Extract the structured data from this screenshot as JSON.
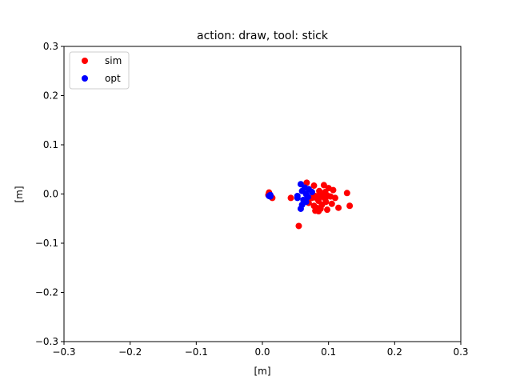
{
  "chart_data": {
    "type": "scatter",
    "title": "action: draw, tool: stick",
    "xlabel": "[m]",
    "ylabel": "[m]",
    "xlim": [
      -0.3,
      0.3
    ],
    "ylim": [
      -0.3,
      0.3
    ],
    "xticks": [
      -0.3,
      -0.2,
      -0.1,
      0.0,
      0.1,
      0.2,
      0.3
    ],
    "yticks": [
      -0.3,
      -0.2,
      -0.1,
      0.0,
      0.1,
      0.2,
      0.3
    ],
    "xtick_labels": [
      "−0.3",
      "−0.2",
      "−0.1",
      "0.0",
      "0.1",
      "0.2",
      "0.3"
    ],
    "ytick_labels": [
      "−0.3",
      "−0.2",
      "−0.1",
      "0.0",
      "0.1",
      "0.2",
      "0.3"
    ],
    "grid": false,
    "legend_position": "top-left",
    "series": [
      {
        "name": "sim",
        "color": "#ff0000",
        "points": [
          [
            0.067,
            0.023
          ],
          [
            0.078,
            0.017
          ],
          [
            0.093,
            0.018
          ],
          [
            0.1,
            0.012
          ],
          [
            0.107,
            0.008
          ],
          [
            0.128,
            0.002
          ],
          [
            0.086,
            0.006
          ],
          [
            0.095,
            0.004
          ],
          [
            0.088,
            -0.002
          ],
          [
            0.08,
            -0.004
          ],
          [
            0.092,
            -0.006
          ],
          [
            0.098,
            -0.003
          ],
          [
            0.103,
            -0.005
          ],
          [
            0.11,
            -0.008
          ],
          [
            0.075,
            -0.008
          ],
          [
            0.083,
            -0.01
          ],
          [
            0.085,
            -0.014
          ],
          [
            0.096,
            -0.016
          ],
          [
            0.105,
            -0.02
          ],
          [
            0.09,
            -0.022
          ],
          [
            0.078,
            -0.024
          ],
          [
            0.082,
            -0.028
          ],
          [
            0.088,
            -0.03
          ],
          [
            0.098,
            -0.032
          ],
          [
            0.085,
            -0.035
          ],
          [
            0.08,
            -0.034
          ],
          [
            0.115,
            -0.028
          ],
          [
            0.132,
            -0.024
          ],
          [
            0.055,
            -0.065
          ],
          [
            0.043,
            -0.008
          ],
          [
            0.01,
            0.003
          ],
          [
            0.013,
            -0.005
          ],
          [
            0.015,
            -0.008
          ],
          [
            0.009,
            -0.002
          ],
          [
            0.07,
            -0.018
          ],
          [
            0.095,
            -0.01
          ]
        ]
      },
      {
        "name": "opt",
        "color": "#0000ff",
        "points": [
          [
            0.058,
            0.02
          ],
          [
            0.064,
            0.013
          ],
          [
            0.07,
            0.01
          ],
          [
            0.06,
            0.006
          ],
          [
            0.075,
            0.004
          ],
          [
            0.066,
            0.0
          ],
          [
            0.053,
            -0.004
          ],
          [
            0.053,
            -0.008
          ],
          [
            0.062,
            -0.012
          ],
          [
            0.066,
            -0.016
          ],
          [
            0.06,
            -0.022
          ],
          [
            0.058,
            -0.03
          ],
          [
            0.012,
            -0.002
          ],
          [
            0.012,
            -0.005
          ],
          [
            0.01,
            -0.004
          ],
          [
            0.069,
            -0.006
          ]
        ]
      }
    ]
  }
}
